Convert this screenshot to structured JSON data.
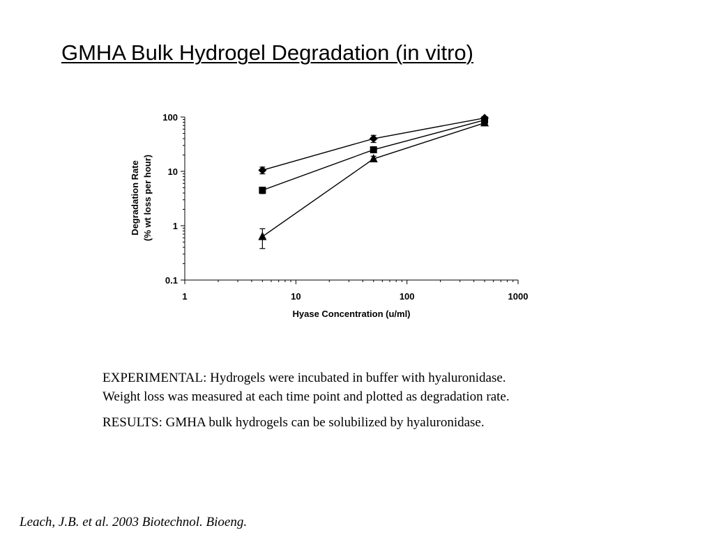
{
  "slide": {
    "title": "GMHA Bulk Hydrogel Degradation (in vitro)",
    "experimental": "EXPERIMENTAL: Hydrogels were incubated in buffer with hyaluronidase.",
    "experimental_line2": "Weight loss was measured at each time point and plotted as degradation rate.",
    "results": "RESULTS: GMHA bulk hydrogels can be solubilized by hyaluronidase.",
    "citation": "Leach, J.B. et al. 2003 Biotechnol. Bioeng."
  },
  "chart_data": {
    "type": "line",
    "title": "",
    "xlabel": "Hyase Concentration (u/ml)",
    "ylabel_line1": "Degradation Rate",
    "ylabel_line2": "(% wt loss per hour)",
    "x_scale": "log",
    "y_scale": "log",
    "xlim": [
      1,
      1000
    ],
    "ylim": [
      0.1,
      100
    ],
    "x_ticks": [
      1,
      10,
      100,
      1000
    ],
    "x_tick_labels": [
      "1",
      "10",
      "100",
      "1000"
    ],
    "y_ticks": [
      0.1,
      1,
      10,
      100
    ],
    "y_tick_labels": [
      "0.1",
      "1",
      "10",
      "100"
    ],
    "grid": false,
    "legend": "none",
    "line_color": "#000000",
    "series": [
      {
        "marker": "diamond",
        "x": [
          5,
          50,
          500
        ],
        "y": [
          10.5,
          40,
          96
        ],
        "err": [
          1.5,
          6,
          5
        ]
      },
      {
        "marker": "square",
        "x": [
          5,
          50,
          500
        ],
        "y": [
          4.5,
          25,
          88
        ],
        "err": [
          0.6,
          3,
          4
        ]
      },
      {
        "marker": "triangle",
        "x": [
          5,
          50,
          500
        ],
        "y": [
          0.63,
          17,
          78
        ],
        "err": [
          0.25,
          2,
          4
        ]
      }
    ]
  }
}
